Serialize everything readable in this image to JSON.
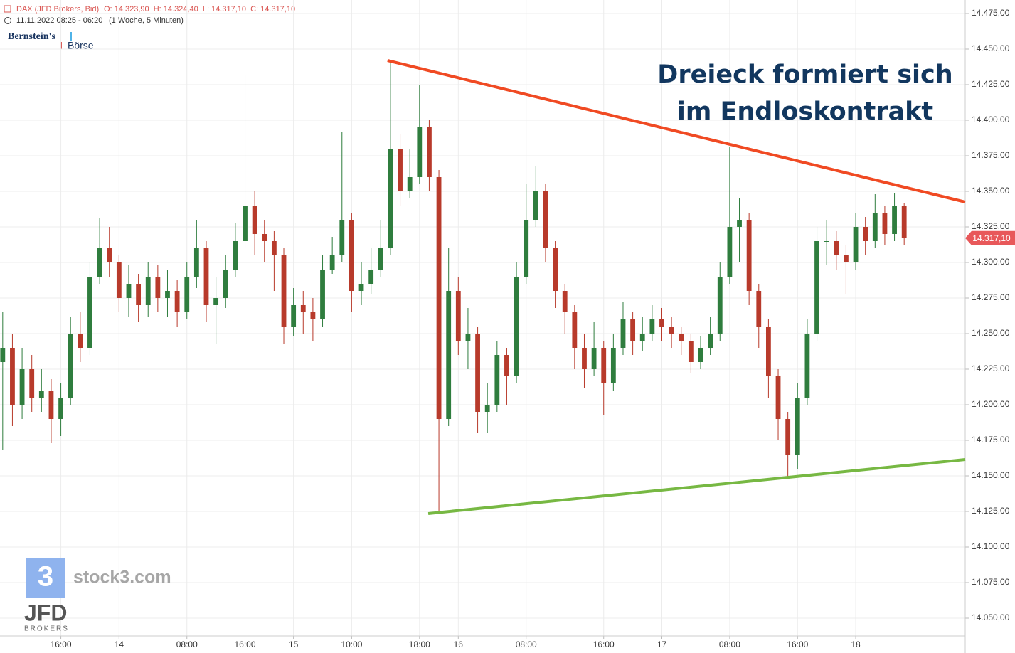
{
  "header": {
    "instrument": "DAX (JFD Brokers, Bid)",
    "ohlc": "O: 14.323,90  H: 14.324,40  L: 14.317,10  C: 14.317,10",
    "range": "11.11.2022 08:25 - 06:20",
    "interval": "(1 Woche, 5 Minuten)"
  },
  "logos": {
    "bernstein": "Bernstein's",
    "boerse": "Börse",
    "stock3": "stock3.com",
    "stock3_icon": "3",
    "jfd": "JFD",
    "brokers": "BROKERS"
  },
  "chart_data": {
    "type": "candlestick",
    "annotation": [
      "Dreieck formiert sich",
      "im Endloskontrakt"
    ],
    "up_color": "#2f7d3e",
    "down_color": "#b83a2b",
    "categories": [
      null,
      null,
      null,
      null,
      null,
      null,
      "16:00",
      null,
      null,
      null,
      null,
      null,
      "14",
      null,
      null,
      null,
      null,
      null,
      null,
      "08:00",
      null,
      null,
      null,
      null,
      null,
      "16:00",
      null,
      null,
      null,
      null,
      "15",
      null,
      null,
      null,
      null,
      null,
      "10:00",
      null,
      null,
      null,
      null,
      null,
      null,
      "18:00",
      null,
      null,
      null,
      "16",
      null,
      null,
      null,
      null,
      null,
      null,
      "08:00",
      null,
      null,
      null,
      null,
      null,
      null,
      null,
      "16:00",
      null,
      null,
      null,
      null,
      null,
      "17",
      null,
      null,
      null,
      null,
      null,
      null,
      "08:00",
      null,
      null,
      null,
      null,
      null,
      null,
      "16:00",
      null,
      null,
      null,
      null,
      null,
      "18",
      null,
      null,
      null,
      null,
      null
    ],
    "open": [
      14230,
      14240,
      14200,
      14225,
      14205,
      14210,
      14190,
      14205,
      14250,
      14240,
      14290,
      14310,
      14300,
      14275,
      14285,
      14270,
      14290,
      14275,
      14280,
      14265,
      14290,
      14310,
      14270,
      14275,
      14295,
      14315,
      14340,
      14320,
      14315,
      14305,
      14255,
      14270,
      14265,
      14260,
      14295,
      14305,
      14330,
      14280,
      14285,
      14295,
      14310,
      14380,
      14350,
      14360,
      14395,
      14360,
      14190,
      14280,
      14245,
      14250,
      14195,
      14200,
      14235,
      14220,
      14290,
      14330,
      14350,
      14310,
      14280,
      14265,
      14240,
      14225,
      14240,
      14215,
      14240,
      14260,
      14245,
      14250,
      14260,
      14255,
      14250,
      14245,
      14230,
      14240,
      14250,
      14290,
      14325,
      14330,
      14280,
      14255,
      14220,
      14190,
      14165,
      14205,
      14250,
      14315,
      14315,
      14305,
      14300,
      14325,
      14315,
      14335,
      14320,
      14340
    ],
    "high": [
      14265,
      14250,
      14240,
      14235,
      14225,
      14218,
      14215,
      14262,
      14265,
      14300,
      14331,
      14325,
      14305,
      14298,
      14292,
      14300,
      14298,
      14295,
      14288,
      14300,
      14330,
      14315,
      14290,
      14305,
      14328,
      14432,
      14350,
      14330,
      14322,
      14310,
      14282,
      14280,
      14275,
      14305,
      14318,
      14392,
      14335,
      14300,
      14310,
      14330,
      14442,
      14390,
      14380,
      14425,
      14400,
      14365,
      14310,
      14290,
      14268,
      14255,
      14215,
      14245,
      14240,
      14300,
      14355,
      14368,
      14355,
      14315,
      14285,
      14270,
      14250,
      14258,
      14245,
      14250,
      14272,
      14265,
      14262,
      14270,
      14268,
      14262,
      14255,
      14250,
      14248,
      14262,
      14300,
      14381,
      14345,
      14335,
      14285,
      14260,
      14225,
      14195,
      14215,
      14260,
      14325,
      14330,
      14322,
      14312,
      14335,
      14332,
      14348,
      14340,
      14349,
      14342
    ],
    "low": [
      14168,
      14185,
      14190,
      14195,
      14195,
      14173,
      14178,
      14200,
      14230,
      14235,
      14285,
      14290,
      14265,
      14262,
      14258,
      14262,
      14265,
      14262,
      14255,
      14260,
      14282,
      14258,
      14243,
      14268,
      14290,
      14310,
      14305,
      14300,
      14280,
      14243,
      14248,
      14250,
      14245,
      14255,
      14292,
      14300,
      14265,
      14270,
      14278,
      14290,
      14305,
      14340,
      14345,
      14355,
      14350,
      14123,
      14185,
      14235,
      14225,
      14180,
      14180,
      14195,
      14200,
      14215,
      14285,
      14325,
      14300,
      14268,
      14250,
      14225,
      14212,
      14220,
      14193,
      14210,
      14235,
      14235,
      14238,
      14245,
      14245,
      14240,
      14235,
      14222,
      14225,
      14235,
      14245,
      14285,
      14300,
      14270,
      14240,
      14205,
      14175,
      14148,
      14155,
      14200,
      14245,
      14298,
      14295,
      14278,
      14295,
      14305,
      14310,
      14312,
      14315,
      14312
    ],
    "close": [
      14240,
      14200,
      14225,
      14205,
      14210,
      14190,
      14205,
      14250,
      14240,
      14290,
      14310,
      14300,
      14275,
      14285,
      14270,
      14290,
      14275,
      14280,
      14265,
      14290,
      14310,
      14270,
      14275,
      14295,
      14315,
      14340,
      14320,
      14315,
      14305,
      14255,
      14270,
      14265,
      14260,
      14295,
      14305,
      14330,
      14280,
      14285,
      14295,
      14310,
      14380,
      14350,
      14360,
      14395,
      14360,
      14190,
      14280,
      14245,
      14250,
      14195,
      14200,
      14235,
      14220,
      14290,
      14330,
      14350,
      14310,
      14280,
      14265,
      14240,
      14225,
      14240,
      14215,
      14240,
      14260,
      14245,
      14250,
      14260,
      14255,
      14250,
      14245,
      14230,
      14240,
      14250,
      14290,
      14325,
      14330,
      14280,
      14255,
      14220,
      14190,
      14165,
      14205,
      14250,
      14315,
      14315,
      14305,
      14300,
      14325,
      14315,
      14335,
      14320,
      14340,
      14317.1
    ],
    "last_price": {
      "value": 14317.1,
      "label": "14.317,10",
      "color": "#e8585a"
    },
    "trendlines": [
      {
        "color": "#f04a23",
        "x": [
          39.7,
          99.3
        ],
        "y": [
          14442,
          14342.5
        ]
      },
      {
        "color": "#77b843",
        "x": [
          43.9,
          99.3
        ],
        "y": [
          14123.5,
          14161.5
        ]
      }
    ],
    "ylim": [
      14037.5,
      14484.5
    ],
    "yticks": [
      {
        "value": 14050,
        "label": "14.050,00"
      },
      {
        "value": 14075,
        "label": "14.075,00"
      },
      {
        "value": 14100,
        "label": "14.100,00"
      },
      {
        "value": 14125,
        "label": "14.125,00"
      },
      {
        "value": 14150,
        "label": "14.150,00"
      },
      {
        "value": 14175,
        "label": "14.175,00"
      },
      {
        "value": 14200,
        "label": "14.200,00"
      },
      {
        "value": 14225,
        "label": "14.225,00"
      },
      {
        "value": 14250,
        "label": "14.250,00"
      },
      {
        "value": 14275,
        "label": "14.275,00"
      },
      {
        "value": 14300,
        "label": "14.300,00"
      },
      {
        "value": 14325,
        "label": "14.325,00"
      },
      {
        "value": 14350,
        "label": "14.350,00"
      },
      {
        "value": 14375,
        "label": "14.375,00"
      },
      {
        "value": 14400,
        "label": "14.400,00"
      },
      {
        "value": 14425,
        "label": "14.425,00"
      },
      {
        "value": 14450,
        "label": "14.450,00"
      },
      {
        "value": 14475,
        "label": "14.475,00"
      }
    ],
    "grid": true
  }
}
